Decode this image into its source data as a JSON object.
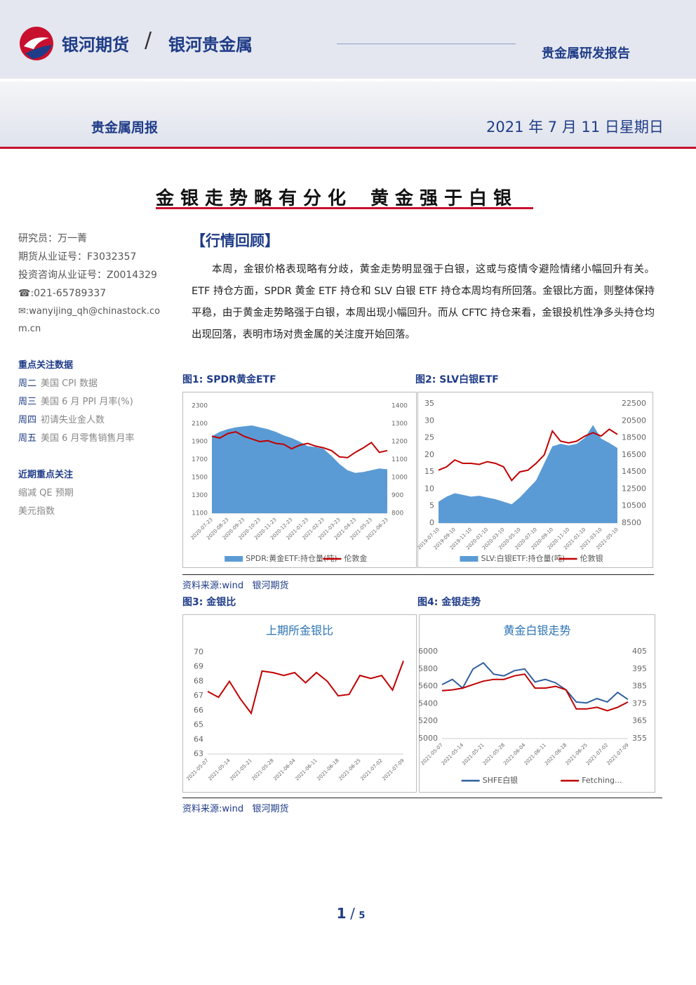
{
  "header": {
    "company": "银河期货",
    "division": "银河贵金属",
    "report_type": "贵金属研发报告",
    "series": "贵金属周报",
    "date": "2021 年 7 月 11 日星期日"
  },
  "title": {
    "part1": "金银走势略有分化",
    "part2": "黄金强于白银"
  },
  "sidebar": {
    "analyst": "研究员：万一菁",
    "license1": "期货从业证号：F3032357",
    "license2": "投资咨询从业证号：Z0014329",
    "phone": "021-65789337",
    "email": "wanyijing_qh@chinastock.com.cn",
    "focus_title": "重点关注数据",
    "focus": [
      {
        "day": "周二",
        "item": "美国 CPI 数据"
      },
      {
        "day": "周三",
        "item": "美国 6 月 PPI 月率(%)"
      },
      {
        "day": "周四",
        "item": "初请失业金人数"
      },
      {
        "day": "周五",
        "item": "美国 6 月零售销售月率"
      }
    ],
    "recent_title": "近期重点关注",
    "recent": [
      "缩减 QE 预期",
      "美元指数"
    ]
  },
  "section": {
    "heading": "【行情回顾】",
    "paragraph": "本周，金银价格表现略有分歧，黄金走势明显强于白银，这或与疫情令避险情绪小幅回升有关。ETF 持仓方面，SPDR 黄金 ETF 持仓和 SLV 白银 ETF 持仓本周均有所回落。金银比方面，则整体保持平稳，由于黄金走势略强于白银，本周出现小幅回升。而从 CFTC 持仓来看，金银投机性净多头持仓均出现回落，表明市场对贵金属的关注度开始回落。"
  },
  "figures": [
    {
      "caption": "图1: SPDR黄金ETF",
      "chart_data": {
        "type": "combo",
        "categories": [
          "2020-07-23",
          null,
          "2020-08-23",
          null,
          "2020-09-23",
          null,
          "2020-10-23",
          null,
          "2020-11-23",
          null,
          "2020-12-23",
          null,
          "2021-01-23",
          null,
          "2021-02-23",
          null,
          "2021-03-23",
          null,
          "2021-04-23",
          null,
          "2021-05-23",
          null,
          "2021-06-23"
        ],
        "series": [
          {
            "name": "SPDR:黄金ETF:持仓量(吨)",
            "style": "area",
            "axis": "y2",
            "color": "#5b9bd5",
            "values": [
              1230,
              1255,
              1270,
              1280,
              1285,
              1290,
              1280,
              1270,
              1255,
              1235,
              1220,
              1200,
              1175,
              1170,
              1160,
              1120,
              1075,
              1040,
              1025,
              1030,
              1040,
              1050,
              1045
            ]
          },
          {
            "name": "伦敦金",
            "style": "line",
            "color": "#c00000",
            "values": [
              1960,
              1940,
              1990,
              2010,
              1960,
              1930,
              1900,
              1910,
              1880,
              1870,
              1820,
              1860,
              1880,
              1850,
              1830,
              1800,
              1730,
              1720,
              1780,
              1830,
              1890,
              1780,
              1800
            ]
          }
        ],
        "ylim": [
          1100,
          2300
        ],
        "yticks": [
          1100,
          1300,
          1500,
          1700,
          1900,
          2100,
          2300
        ],
        "y2lim": [
          800,
          1400
        ],
        "y2ticks": [
          800,
          900,
          1000,
          1100,
          1200,
          1300,
          1400
        ]
      }
    },
    {
      "caption": "图2:  SLV白银ETF",
      "chart_data": {
        "type": "combo",
        "categories": [
          "2019-07-10",
          null,
          "2019-09-10",
          null,
          "2019-11-10",
          null,
          "2020-01-10",
          null,
          "2020-03-10",
          null,
          "2020-05-10",
          null,
          "2020-07-10",
          null,
          "2020-09-10",
          null,
          "2020-11-10",
          null,
          "2021-01-10",
          null,
          "2021-03-10",
          null,
          "2021-05-10"
        ],
        "series": [
          {
            "name": "SLV:白银ETF:持仓量(吨)",
            "style": "area",
            "axis": "y2",
            "color": "#5b9bd5",
            "values": [
              11000,
              11600,
              12000,
              11800,
              11600,
              11700,
              11500,
              11300,
              11000,
              10700,
              11500,
              12500,
              13500,
              15500,
              17500,
              17800,
              17600,
              17800,
              18500,
              20000,
              18400,
              17900,
              17300
            ]
          },
          {
            "name": "伦敦银",
            "style": "line",
            "color": "#c00000",
            "values": [
              15.5,
              16.5,
              18.5,
              17.5,
              17.5,
              17.2,
              18,
              17.5,
              16.5,
              12.5,
              15,
              15.5,
              17.5,
              20,
              27,
              24,
              23.5,
              24,
              25.5,
              26.5,
              25.5,
              27.5,
              26
            ]
          }
        ],
        "ylim": [
          0,
          35
        ],
        "yticks": [
          0,
          5,
          10,
          15,
          20,
          25,
          30,
          35
        ],
        "y2lim": [
          8500,
          22500
        ],
        "y2ticks": [
          8500,
          10500,
          12500,
          14500,
          16500,
          18500,
          20500,
          22500
        ]
      }
    },
    {
      "caption": "图3:  金银比",
      "chart_data": {
        "type": "line",
        "title": "上期所金银比",
        "categories": [
          "2021-05-07",
          null,
          "2021-05-14",
          null,
          "2021-05-21",
          null,
          "2021-05-28",
          null,
          "2021-06-04",
          null,
          "2021-06-11",
          null,
          "2021-06-18",
          null,
          "2021-06-25",
          null,
          "2021-07-02",
          null,
          "2021-07-09"
        ],
        "series": [
          {
            "style": "line",
            "color": "#c00000",
            "values": [
              67.3,
              66.9,
              68.0,
              66.8,
              65.8,
              68.7,
              68.6,
              68.4,
              68.6,
              67.9,
              68.6,
              68.0,
              67.0,
              67.1,
              68.4,
              68.2,
              68.4,
              67.4,
              69.4
            ]
          }
        ],
        "ylim": [
          63,
          70
        ],
        "yticks": [
          63,
          64,
          65,
          66,
          67,
          68,
          69,
          70
        ]
      }
    },
    {
      "caption": "图4:  金银走势",
      "chart_data": {
        "type": "line",
        "title": "黄金白银走势",
        "categories": [
          "2021-05-07",
          null,
          "2021-05-14",
          null,
          "2021-05-21",
          null,
          "2021-05-28",
          null,
          "2021-06-04",
          null,
          "2021-06-11",
          null,
          "2021-06-18",
          null,
          "2021-06-25",
          null,
          "2021-07-02",
          null,
          "2021-07-09"
        ],
        "series": [
          {
            "name": "SHFE白银",
            "style": "line",
            "color": "#2e5f9e",
            "values": [
              5620,
              5680,
              5580,
              5800,
              5870,
              5740,
              5720,
              5780,
              5800,
              5650,
              5680,
              5640,
              5560,
              5420,
              5410,
              5460,
              5420,
              5530,
              5450
            ]
          },
          {
            "name": "Fetching...",
            "style": "line",
            "axis": "y2",
            "color": "#c00000",
            "values": [
              382.5,
              383,
              384,
              386,
              388,
              389,
              389,
              391,
              392,
              384,
              384,
              385,
              383,
              372,
              372,
              373,
              371,
              373,
              376
            ]
          }
        ],
        "ylim": [
          5000,
          6000
        ],
        "yticks": [
          5000,
          5200,
          5400,
          5600,
          5800,
          6000
        ],
        "y2lim": [
          355,
          405
        ],
        "y2ticks": [
          355,
          365,
          375,
          385,
          395,
          405
        ]
      }
    }
  ],
  "sources": [
    "资料来源:wind   银河期货",
    "资料来源:wind   银河期货"
  ],
  "page": {
    "current": 1,
    "total": 5
  }
}
